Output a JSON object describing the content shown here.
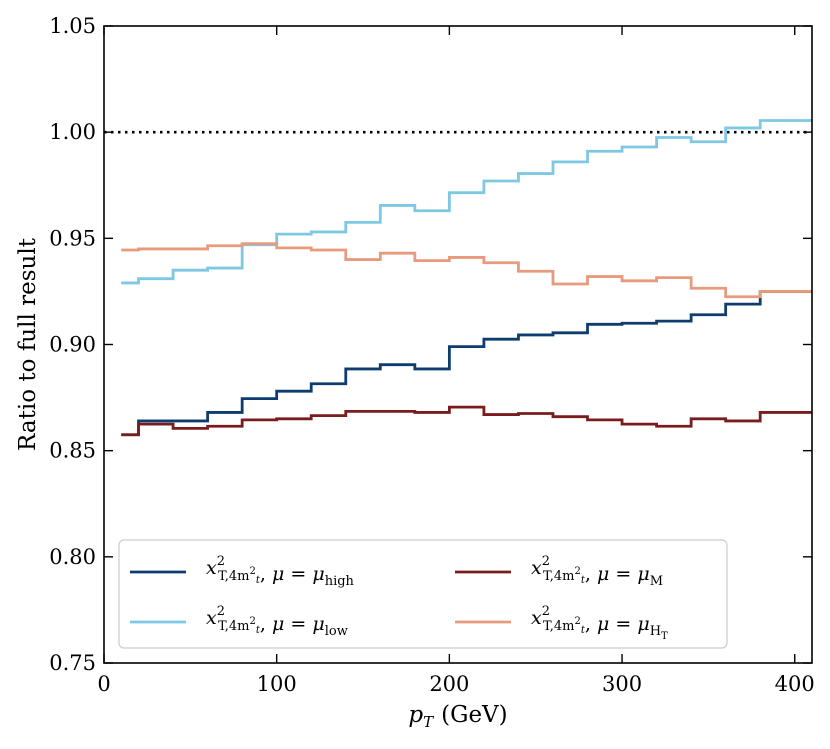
{
  "chart_data": {
    "type": "line",
    "style": "step",
    "xlabel_main": "p",
    "xlabel_sub": "T",
    "xlabel_unit": "(GeV)",
    "ylabel": "Ratio to full result",
    "xlim": [
      0,
      410
    ],
    "ylim": [
      0.75,
      1.05
    ],
    "xticks": [
      0,
      100,
      200,
      300,
      400
    ],
    "yticks": [
      0.75,
      0.8,
      0.85,
      0.9,
      0.95,
      1.0,
      1.05
    ],
    "ytick_labels": [
      "0.75",
      "0.80",
      "0.85",
      "0.90",
      "0.95",
      "1.00",
      "1.05"
    ],
    "xtick_labels": [
      "0",
      "100",
      "200",
      "300",
      "400"
    ],
    "reference_line": {
      "y": 1.0,
      "style": "dotted",
      "color": "#000000"
    },
    "bin_edges": [
      10,
      20,
      40,
      60,
      80,
      100,
      120,
      140,
      160,
      180,
      200,
      220,
      240,
      260,
      280,
      300,
      320,
      340,
      360,
      380,
      410
    ],
    "series": [
      {
        "name": "mu_high",
        "label_main": "x",
        "label_sup": "2",
        "label_sub": "T,4m",
        "label_sub2": "t",
        "label_mu": "μ = μ",
        "label_mu_sub": "high",
        "color": "#0d3d6e",
        "values": [
          0.8575,
          0.864,
          0.864,
          0.868,
          0.8745,
          0.878,
          0.8815,
          0.8885,
          0.8905,
          0.8885,
          0.899,
          0.9025,
          0.9045,
          0.9055,
          0.9095,
          0.91,
          0.911,
          0.914,
          0.919,
          0.925
        ]
      },
      {
        "name": "mu_low",
        "label_main": "x",
        "label_sup": "2",
        "label_sub": "T,4m",
        "label_sub2": "t",
        "label_mu": "μ = μ",
        "label_mu_sub": "low",
        "color": "#7ec8e3",
        "values": [
          0.929,
          0.931,
          0.935,
          0.936,
          0.947,
          0.952,
          0.953,
          0.9575,
          0.9655,
          0.963,
          0.9715,
          0.977,
          0.9805,
          0.986,
          0.991,
          0.993,
          0.9975,
          0.9955,
          1.002,
          1.0055
        ]
      },
      {
        "name": "mu_M",
        "label_main": "x",
        "label_sup": "2",
        "label_sub": "T,4m",
        "label_sub2": "t",
        "label_mu": "μ = μ",
        "label_mu_sub": "M",
        "color": "#7a1c1e",
        "values": [
          0.8575,
          0.8625,
          0.8605,
          0.8615,
          0.8645,
          0.865,
          0.8665,
          0.8685,
          0.8685,
          0.868,
          0.8705,
          0.867,
          0.8675,
          0.866,
          0.8645,
          0.8625,
          0.8615,
          0.865,
          0.864,
          0.868
        ]
      },
      {
        "name": "mu_HT",
        "label_main": "x",
        "label_sup": "2",
        "label_sub": "T,4m",
        "label_sub2": "t",
        "label_mu": "μ = μ",
        "label_mu_sub": "H",
        "label_mu_sub2": "T",
        "color": "#e89a7c",
        "values": [
          0.9445,
          0.945,
          0.945,
          0.9465,
          0.9475,
          0.9455,
          0.9445,
          0.94,
          0.943,
          0.9395,
          0.941,
          0.9385,
          0.9345,
          0.9285,
          0.932,
          0.93,
          0.9315,
          0.9265,
          0.9225,
          0.925
        ]
      }
    ],
    "legend": {
      "placement": "lower-center",
      "columns": 2
    }
  }
}
